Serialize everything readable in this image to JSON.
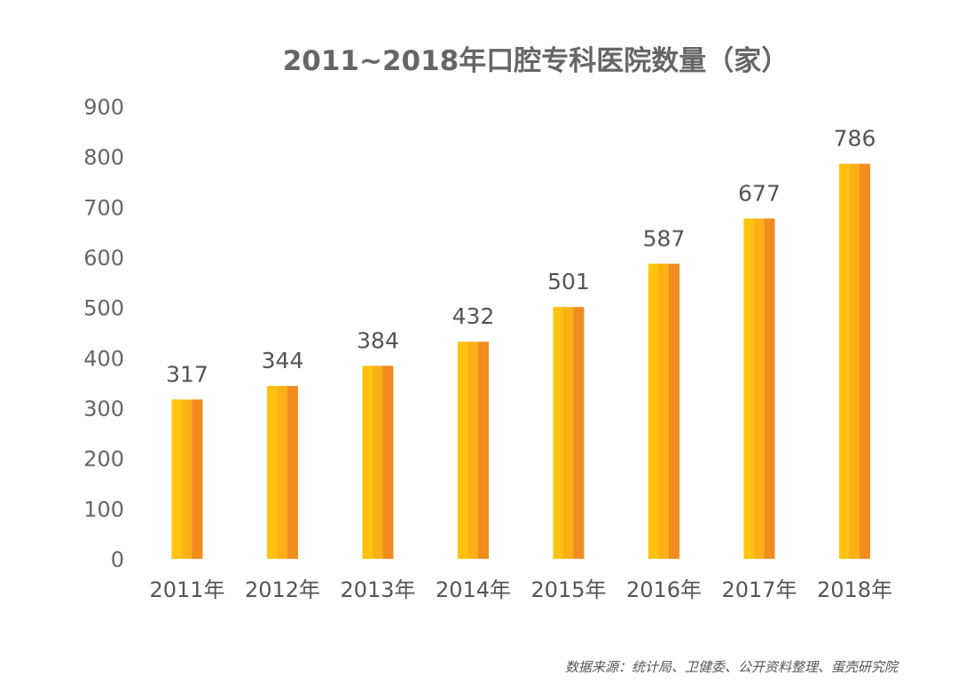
{
  "chart_data": {
    "type": "bar",
    "title": "2011~2018年口腔专科医院数量（家）",
    "categories": [
      "2011年",
      "2012年",
      "2013年",
      "2014年",
      "2015年",
      "2016年",
      "2017年",
      "2018年"
    ],
    "values": [
      317,
      344,
      384,
      432,
      501,
      587,
      677,
      786
    ],
    "ylim": [
      0,
      900
    ],
    "yticks": [
      0,
      100,
      200,
      300,
      400,
      500,
      600,
      700,
      800,
      900
    ],
    "grid": false,
    "legend": "none",
    "data_labels": true,
    "xlabel": "",
    "ylabel": ""
  },
  "source_note": "数据来源：统计局、卫健委、公开资料整理、蛋壳研究院",
  "colors": {
    "bar_light": "#FFC20E",
    "bar_mid": "#F9A61C",
    "bar_dark": "#F28C1E",
    "text": "#666666"
  }
}
